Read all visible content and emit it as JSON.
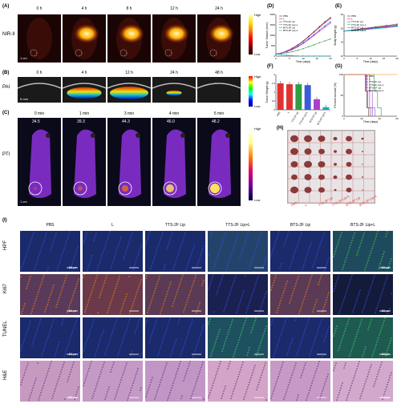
{
  "panels": {
    "A": {
      "label": "(A)",
      "row_label": "NIR-II",
      "times": [
        "0 h",
        "4 h",
        "8 h",
        "12 h",
        "24 h"
      ],
      "scale": "1 cm",
      "cbar_high": "High",
      "cbar_low": "Low"
    },
    "B": {
      "label": "(B)",
      "row_label": "PAI",
      "times": [
        "0 h",
        "4 h",
        "12 h",
        "24 h",
        "48 h"
      ],
      "scale": "5 mm",
      "cbar_high": "High",
      "cbar_low": "Low"
    },
    "C": {
      "label": "(C)",
      "row_label": "PTI",
      "times": [
        "0 min",
        "1 min",
        "3 min",
        "4 min",
        "5 min"
      ],
      "temps": [
        "34.5",
        "39.3",
        "44.3",
        "46.0",
        "48.2"
      ],
      "scale": "1 cm",
      "cbar_high": "High",
      "cbar_low": "Low"
    },
    "D": {
      "label": "(D)"
    },
    "E": {
      "label": "(E)"
    },
    "F": {
      "label": "(F)"
    },
    "G": {
      "label": "(G)"
    },
    "H": {
      "label": "(H)",
      "groups": [
        "PBS",
        "L",
        "TTS-2F Lip",
        "TTS-2F Lip+L",
        "BTS-2F Lip",
        "BTS-2F Lip+L"
      ]
    },
    "I": {
      "label": "(I)",
      "columns": [
        "PBS",
        "L",
        "TTS-2F Lip",
        "TTS-2F Lip+L",
        "BTS-2F Lip",
        "BTS-2F Lip+L"
      ],
      "rows": [
        "HPF",
        "Ki67",
        "TUNEL",
        "H&E"
      ],
      "scale": "50 μm"
    }
  },
  "chart_data": [
    {
      "type": "line",
      "panel": "D",
      "xlabel": "Time (days)",
      "ylabel": "Tumor Volume (mm³)",
      "xlim": [
        0,
        20
      ],
      "ylim": [
        0,
        2000
      ],
      "xticks": [
        0,
        5,
        10,
        15,
        20
      ],
      "yticks": [
        0,
        500,
        1000,
        1500,
        2000
      ],
      "legend": [
        "PBS",
        "L",
        "TTS-2F Lip",
        "TTS-2F Lip+L",
        "BTS-2F Lip",
        "BTS-2F Lip+L"
      ],
      "x": [
        0,
        2,
        4,
        6,
        8,
        10,
        12,
        14,
        16,
        18,
        20
      ],
      "series": [
        {
          "name": "PBS",
          "color": "#333333",
          "values": [
            100,
            150,
            250,
            380,
            540,
            720,
            950,
            1180,
            1420,
            1650,
            1850
          ]
        },
        {
          "name": "L",
          "color": "#e0245e",
          "values": [
            100,
            150,
            240,
            360,
            520,
            700,
            920,
            1150,
            1380,
            1600,
            1800
          ]
        },
        {
          "name": "TTS-2F Lip",
          "color": "#3b5bdb",
          "values": [
            100,
            140,
            220,
            330,
            470,
            630,
            830,
            1030,
            1250,
            1450,
            1650
          ]
        },
        {
          "name": "TTS-2F Lip+L",
          "color": "#2f9e44",
          "values": [
            100,
            120,
            160,
            210,
            280,
            360,
            450,
            540,
            640,
            730,
            820
          ]
        },
        {
          "name": "BTS-2F Lip",
          "color": "#ae3ec9",
          "values": [
            100,
            140,
            210,
            310,
            440,
            600,
            790,
            990,
            1190,
            1390,
            1580
          ]
        },
        {
          "name": "BTS-2F Lip+L",
          "color": "#15aabf",
          "values": [
            100,
            70,
            40,
            20,
            10,
            5,
            0,
            0,
            0,
            0,
            0
          ]
        }
      ]
    },
    {
      "type": "line",
      "panel": "E",
      "xlabel": "Time (days)",
      "ylabel": "Body Weight (g)",
      "xlim": [
        0,
        20
      ],
      "ylim": [
        10,
        25
      ],
      "xticks": [
        0,
        5,
        10,
        15,
        20
      ],
      "yticks": [
        10,
        15,
        20,
        25
      ],
      "legend": [
        "PBS",
        "L",
        "TTS-2F Lip",
        "TTS-2F Lip+L",
        "BTS-2F Lip",
        "BTS-2F Lip+L"
      ],
      "x": [
        0,
        4,
        8,
        12,
        16,
        20
      ],
      "series": [
        {
          "name": "PBS",
          "color": "#333333",
          "values": [
            19,
            19.5,
            20,
            20.5,
            21,
            21.5
          ]
        },
        {
          "name": "L",
          "color": "#e0245e",
          "values": [
            19,
            19.4,
            19.9,
            20.3,
            20.8,
            21.2
          ]
        },
        {
          "name": "TTS-2F Lip",
          "color": "#3b5bdb",
          "values": [
            19,
            19.3,
            19.8,
            20.2,
            20.6,
            21
          ]
        },
        {
          "name": "TTS-2F Lip+L",
          "color": "#2f9e44",
          "values": [
            19,
            19.2,
            19.6,
            20,
            20.4,
            20.8
          ]
        },
        {
          "name": "BTS-2F Lip",
          "color": "#ae3ec9",
          "values": [
            19,
            19.3,
            19.7,
            20.1,
            20.5,
            20.9
          ]
        },
        {
          "name": "BTS-2F Lip+L",
          "color": "#15aabf",
          "values": [
            19,
            19.2,
            19.5,
            19.9,
            20.2,
            20.6
          ]
        }
      ]
    },
    {
      "type": "bar",
      "panel": "F",
      "ylabel": "Tumor Weight (g)",
      "ylim": [
        0,
        2.0
      ],
      "yticks": [
        0,
        0.5,
        1.0,
        1.5,
        2.0
      ],
      "categories": [
        "PBS",
        "L",
        "TTS-2F Lip",
        "TTS-2F Lip+L",
        "BTS-2F Lip",
        "BTS-2F Lip+L"
      ],
      "colors": [
        "#e03131",
        "#e03131",
        "#2f9e44",
        "#3b5bdb",
        "#ae3ec9",
        "#15aabf"
      ],
      "values": [
        1.5,
        1.45,
        1.45,
        1.4,
        0.6,
        0.15
      ]
    },
    {
      "type": "line",
      "panel": "G",
      "xlabel": "Time (days)",
      "ylabel": "Percent survival (%)",
      "xlim": [
        0,
        60
      ],
      "ylim": [
        0,
        100
      ],
      "xticks": [
        0,
        20,
        40,
        60
      ],
      "yticks": [
        0,
        50,
        100
      ],
      "legend": [
        "PBS",
        "L",
        "TTS-2F Lip",
        "TTS-2F Lip+L",
        "BTS-2F Lip",
        "BTS-2F Lip+L"
      ],
      "series": [
        {
          "name": "PBS",
          "color": "#333333",
          "x": [
            0,
            22,
            24,
            26,
            28
          ],
          "values": [
            100,
            100,
            60,
            20,
            0
          ]
        },
        {
          "name": "L",
          "color": "#e0245e",
          "x": [
            0,
            23,
            25,
            27,
            30
          ],
          "values": [
            100,
            100,
            60,
            20,
            0
          ]
        },
        {
          "name": "TTS-2F Lip",
          "color": "#3b5bdb",
          "x": [
            0,
            24,
            26,
            29,
            32
          ],
          "values": [
            100,
            100,
            60,
            20,
            0
          ]
        },
        {
          "name": "TTS-2F Lip+L",
          "color": "#2f9e44",
          "x": [
            0,
            30,
            34,
            38,
            42
          ],
          "values": [
            100,
            100,
            60,
            20,
            0
          ]
        },
        {
          "name": "BTS-2F Lip",
          "color": "#ae3ec9",
          "x": [
            0,
            26,
            29,
            32,
            35
          ],
          "values": [
            100,
            100,
            60,
            20,
            0
          ]
        },
        {
          "name": "BTS-2F Lip+L",
          "color": "#f08c00",
          "x": [
            0,
            60
          ],
          "values": [
            100,
            100
          ]
        }
      ]
    }
  ]
}
